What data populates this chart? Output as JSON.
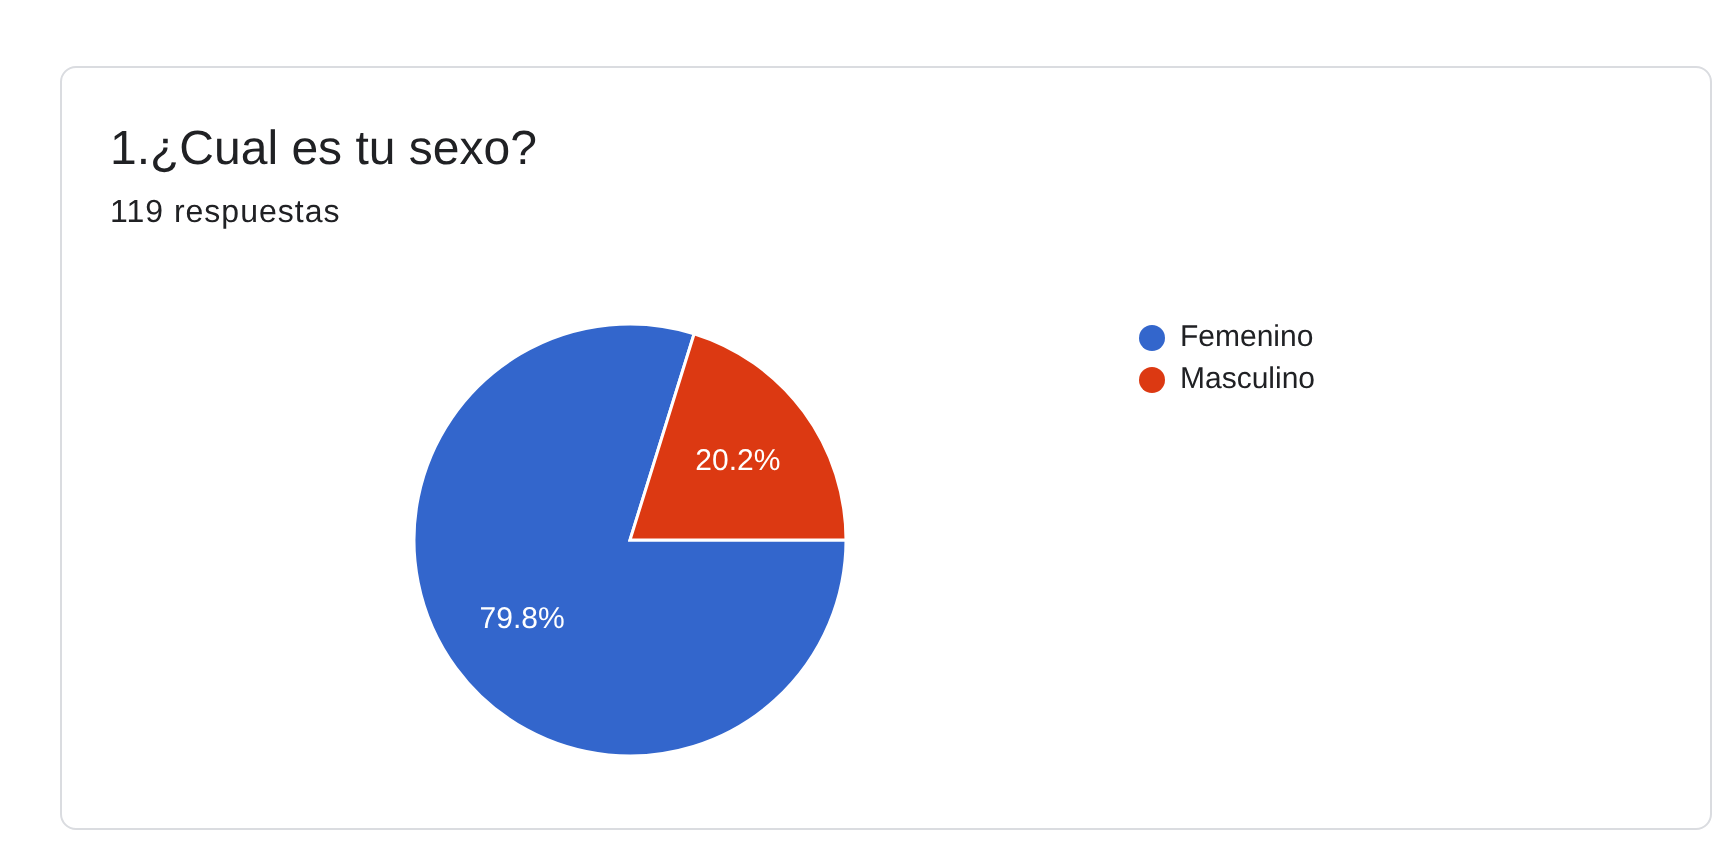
{
  "chart_data": {
    "type": "pie",
    "title": "1.¿Cual es tu sexo?",
    "subtitle": "119 respuestas",
    "categories": [
      "Femenino",
      "Masculino"
    ],
    "values": [
      79.8,
      20.2
    ],
    "colors": [
      "#3366cc",
      "#dc3912"
    ],
    "value_labels": [
      "79.8%",
      "20.2%"
    ],
    "legend": "top right"
  }
}
